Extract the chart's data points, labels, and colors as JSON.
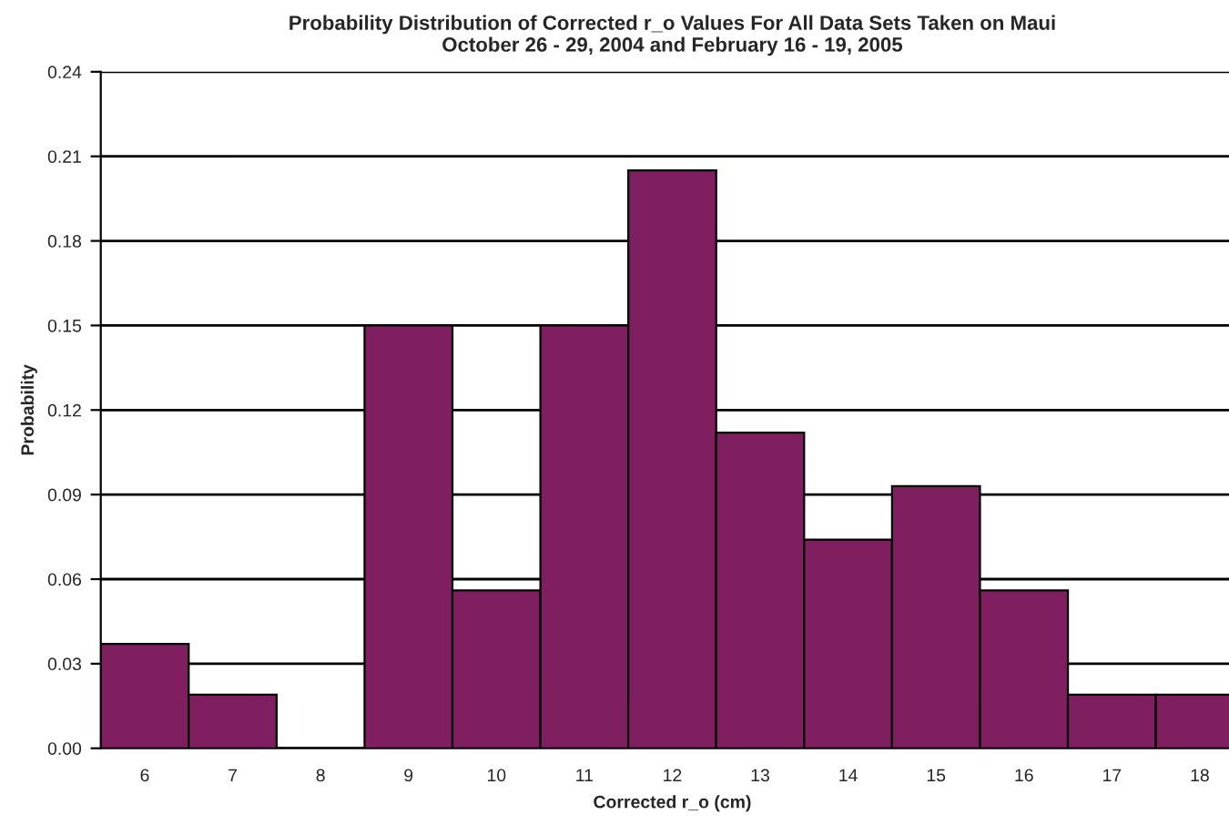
{
  "chart_data": {
    "type": "bar",
    "title": "Probability Distribution of Corrected r_o Values For All Data Sets Taken on Maui\nOctober 26 - 29, 2004 and February 16 - 19, 2005",
    "xlabel": "Corrected r_o (cm)",
    "ylabel": "Probability",
    "categories": [
      "6",
      "7",
      "8",
      "9",
      "10",
      "11",
      "12",
      "13",
      "14",
      "15",
      "16",
      "17",
      "18"
    ],
    "values": [
      0.037,
      0.019,
      0,
      0.15,
      0.056,
      0.15,
      0.205,
      0.112,
      0.074,
      0.093,
      0.056,
      0.019,
      0.019
    ],
    "color": "#7f1f5f",
    "ylim": [
      0,
      0.24
    ],
    "yticks": [
      {
        "value": 0,
        "label": "0.00"
      },
      0.03,
      0.06,
      0.09,
      0.12,
      0.15,
      0.18,
      0.21,
      0.24
    ],
    "grid": "y"
  }
}
